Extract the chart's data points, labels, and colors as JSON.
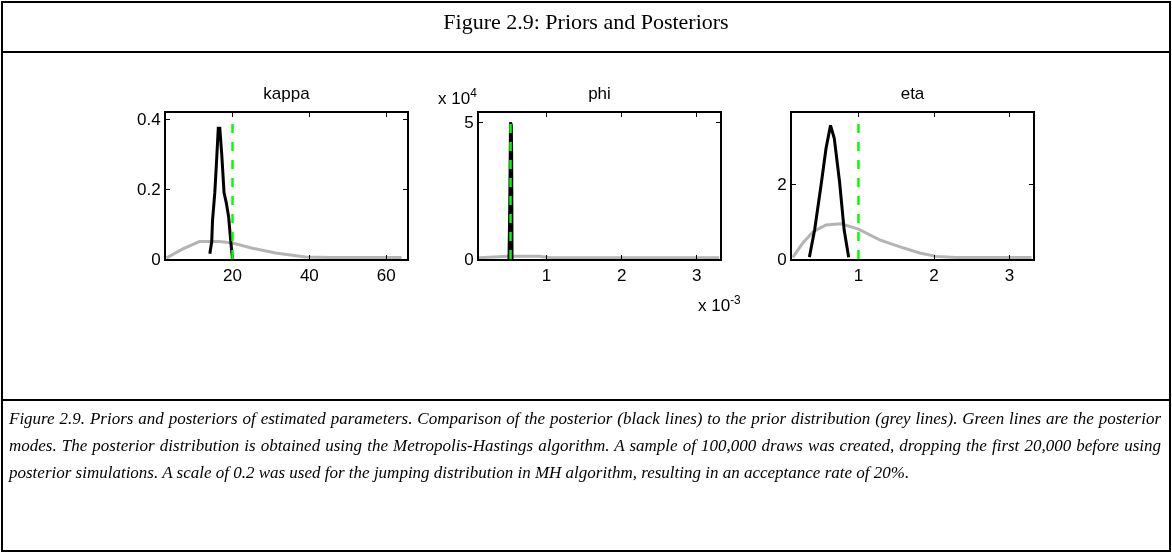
{
  "chart_data": [
    {
      "type": "other",
      "title": "Figure 2.9: Priors and Posteriors",
      "annotations": [
        "Figure 2.9. Priors and posteriors of estimated parameters. Comparison of the posterior (black lines) to the prior distribution (grey lines). Green lines are the posterior modes. The posterior distribution is obtained using the Metropolis-Hastings algorithm. A sample of 100,000 draws was created, dropping the first 20,000 before using posterior simulations. A scale of 0.2 was used for the jumping distribution in MH algorithm, resulting in an acceptance rate of 20%."
      ]
    },
    {
      "type": "line",
      "title": "kappa",
      "xlim": [
        2.7,
        65.4
      ],
      "xticks": [
        20,
        40,
        60
      ],
      "ylim": [
        0,
        0.418
      ],
      "yticks": [
        0,
        0.2,
        0.4
      ],
      "marker": "none",
      "line_style": "solid",
      "series": [
        {
          "color": "#b4b4b4",
          "x": [
            2.8,
            7.1,
            11.4,
            16.6,
            20,
            25.2,
            31.2,
            39,
            45.9,
            64
          ],
          "values": [
            0.003,
            0.029,
            0.05,
            0.05,
            0.046,
            0.031,
            0.017,
            0.006,
            0.004,
            0.004
          ]
        },
        {
          "color": "#000000",
          "x": [
            14.1,
            14.6,
            14.8,
            15.4,
            15.9,
            16.3,
            16.7,
            17.2,
            17.8,
            18.4,
            19,
            19.6,
            20
          ],
          "values": [
            0.015,
            0.05,
            0.11,
            0.19,
            0.29,
            0.374,
            0.374,
            0.3,
            0.19,
            0.16,
            0.12,
            0.045,
            0
          ]
        }
      ],
      "ref_lines": [
        {
          "axis": "x",
          "value": 20,
          "color": "#00ff00",
          "line_style": "dashed"
        }
      ]
    },
    {
      "type": "line",
      "title": "phi",
      "xlim": [
        0.1,
        3.31
      ],
      "xticks": [
        1,
        2,
        3
      ],
      "ylim": [
        0,
        5.34
      ],
      "yticks": [
        0,
        5
      ],
      "marker": "none",
      "line_style": "solid",
      "annotations": [
        "x 10$^{4}$",
        "x 10$^{-3}$"
      ],
      "series": [
        {
          "color": "#b4b4b4",
          "x": [
            0.1,
            0.5,
            0.9,
            1.05,
            3.3
          ],
          "values": [
            0.05,
            0.1,
            0.1,
            0.05,
            0.05
          ]
        },
        {
          "color": "#000000",
          "x": [
            0.5,
            0.51,
            0.52,
            0.53,
            0.535,
            0.54
          ],
          "values": [
            0,
            2,
            5,
            4.9,
            3.8,
            0
          ]
        }
      ],
      "ref_lines": [
        {
          "axis": "x",
          "value": 0.52,
          "color": "#00ff00",
          "line_style": "dashed"
        }
      ]
    },
    {
      "type": "line",
      "title": "eta",
      "xlim": [
        0.12,
        3.31
      ],
      "xticks": [
        1,
        2,
        3
      ],
      "ylim": [
        0,
        3.9
      ],
      "yticks": [
        0,
        2
      ],
      "marker": "none",
      "line_style": "solid",
      "series": [
        {
          "color": "#b4b4b4",
          "x": [
            0.13,
            0.26,
            0.4,
            0.57,
            0.77,
            1,
            1.28,
            1.54,
            1.81,
            2.03,
            2.29,
            3.29
          ],
          "values": [
            0.04,
            0.42,
            0.73,
            0.91,
            0.94,
            0.8,
            0.51,
            0.33,
            0.16,
            0.07,
            0.04,
            0.04
          ]
        },
        {
          "color": "#000000",
          "x": [
            0.35,
            0.42,
            0.51,
            0.57,
            0.63,
            0.68,
            0.75,
            0.81,
            0.87
          ],
          "values": [
            0.05,
            0.78,
            2.05,
            2.95,
            3.57,
            3.22,
            2.05,
            0.78,
            0.05
          ]
        }
      ],
      "ref_lines": [
        {
          "axis": "x",
          "value": 1,
          "color": "#00ff00",
          "line_style": "dashed"
        }
      ]
    }
  ]
}
